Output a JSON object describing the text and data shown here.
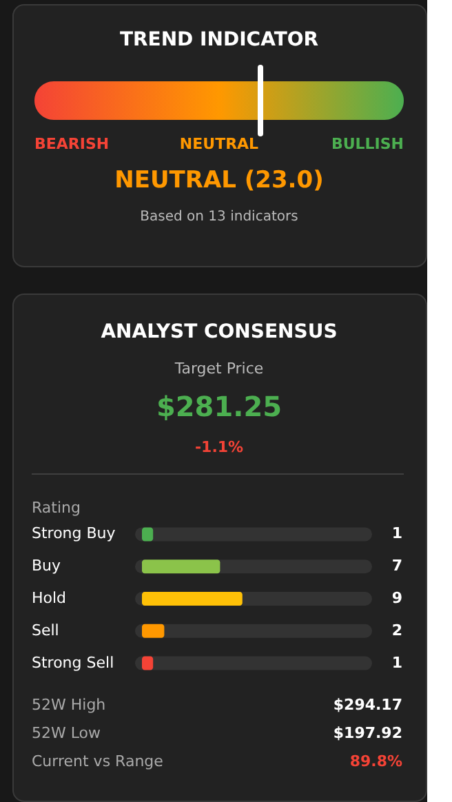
{
  "chart_data": [
    {
      "type": "other",
      "title": "TREND INDICATOR",
      "annotations": [
        "BEARISH",
        "NEUTRAL",
        "BULLISH",
        "NEUTRAL (23.0)",
        "Based on 13 indicators"
      ]
    },
    {
      "type": "bar",
      "orientation": "horizontal",
      "title": "ANALYST CONSENSUS",
      "ylabel": "Rating",
      "categories": [
        "Strong Buy",
        "Buy",
        "Hold",
        "Sell",
        "Strong Sell"
      ],
      "values": [
        1,
        7,
        9,
        2,
        1
      ],
      "colors": [
        "#4caf50",
        "#8bc34a",
        "#ffc107",
        "#ff9800",
        "#f44336"
      ],
      "xlim": [
        0,
        20
      ],
      "data_labels": true,
      "annotations": [
        "Target Price",
        "$281.25",
        "-1.1%",
        "52W High",
        "$294.17",
        "52W Low",
        "$197.92",
        "Current vs Range",
        "89.8%"
      ]
    }
  ]
}
